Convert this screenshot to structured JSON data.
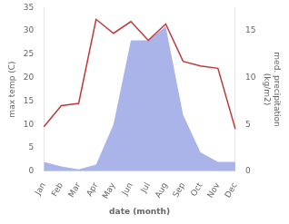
{
  "chart_data": {
    "type": "line",
    "categories": [
      "Jan",
      "Feb",
      "Mar",
      "Apr",
      "May",
      "Jun",
      "Jul",
      "Aug",
      "Sep",
      "Oct",
      "Nov",
      "Dec"
    ],
    "series": [
      {
        "type": "line",
        "color": "#c0393b",
        "values": [
          9.5,
          14.0,
          14.5,
          32.5,
          29.5,
          32.0,
          28.0,
          31.5,
          23.5,
          22.5,
          22.0,
          9.0
        ]
      },
      {
        "type": "area",
        "color": "#aab4e8",
        "axis": "y2",
        "values": [
          1.0,
          0.5,
          0.2,
          0.7,
          5.0,
          14.0,
          14.0,
          15.5,
          6.0,
          2.0,
          1.0,
          1.0
        ]
      }
    ],
    "xlabel": "date (month)",
    "ylabel": "max temp (C)",
    "y2label": "med. precipitation\n(kg/m2)",
    "ylim": [
      0,
      35
    ],
    "yticks": [
      0,
      5,
      10,
      15,
      20,
      25,
      30,
      35
    ],
    "y2lim": [
      0,
      17.5
    ],
    "y2ticks": [
      0,
      5,
      10,
      15
    ],
    "grid": false
  }
}
